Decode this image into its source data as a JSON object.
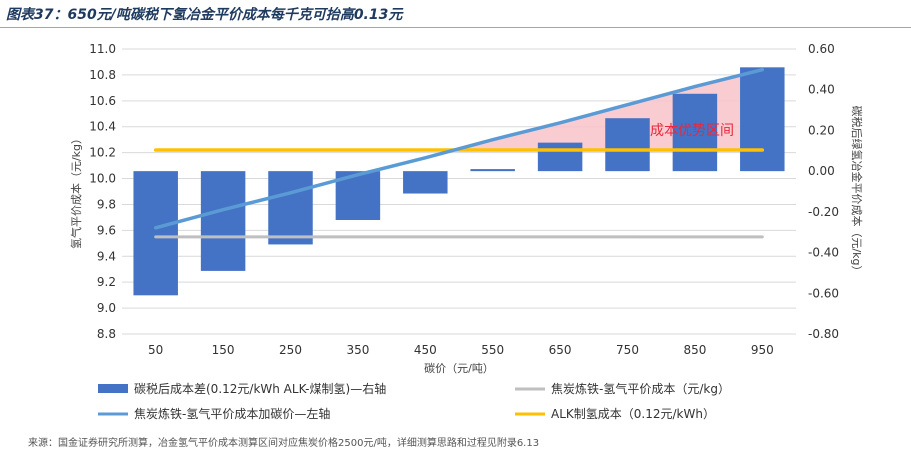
{
  "figure_title": "图表37：650元/吨碳税下氢冶金平价成本每千克可抬高0.13元",
  "source_note": "来源：国金证券研究所测算，冶金氢气平价成本测算区间对应焦炭价格2500元/吨，详细测算思路和过程见附录6.13",
  "colors": {
    "bar": "#4472c4",
    "rising_line": "#5b9bd5",
    "flat_line": "#bfbfbf",
    "alk_line": "#ffc000",
    "zone_fill": "#f8c3c9",
    "zone_text": "#e8283c"
  },
  "chart_data": {
    "type": "bar",
    "categories": [
      "50",
      "150",
      "250",
      "350",
      "450",
      "550",
      "650",
      "750",
      "850",
      "950"
    ],
    "xlabel": "碳价（元/吨）",
    "ylabel_left": "氢气平价成本（元/kg）",
    "ylabel_right": "碳税后绿氢冶金平价成本（元/kg）",
    "ylim_left": [
      8.8,
      11.0
    ],
    "yticks_left": [
      "8.8",
      "9.0",
      "9.2",
      "9.4",
      "9.6",
      "9.8",
      "10.0",
      "10.2",
      "10.4",
      "10.6",
      "10.8",
      "11.0"
    ],
    "ylim_right": [
      -0.8,
      0.6
    ],
    "yticks_right": [
      "-0.80",
      "-0.60",
      "-0.40",
      "-0.20",
      "0.00",
      "0.20",
      "0.40",
      "0.60"
    ],
    "grid": true,
    "legend_position": "bottom",
    "series": [
      {
        "name": "碳税后成本差(0.12元/kWh ALK-煤制氢)—右轴",
        "kind": "bar",
        "axis": "right",
        "values": [
          -0.61,
          -0.49,
          -0.36,
          -0.24,
          -0.11,
          0.01,
          0.14,
          0.26,
          0.38,
          0.51
        ]
      },
      {
        "name": "焦炭炼铁-氢气平价成本（元/kg）",
        "kind": "line",
        "axis": "left",
        "values": [
          9.55,
          9.55,
          9.55,
          9.55,
          9.55,
          9.55,
          9.55,
          9.55,
          9.55,
          9.55
        ]
      },
      {
        "name": "焦炭炼铁-氢气平价成本加碳价—左轴",
        "kind": "line",
        "axis": "left",
        "values": [
          9.62,
          9.76,
          9.89,
          10.03,
          10.16,
          10.3,
          10.43,
          10.57,
          10.71,
          10.84
        ]
      },
      {
        "name": "ALK制氢成本（0.12元/kWh）",
        "kind": "line",
        "axis": "left",
        "values": [
          10.22,
          10.22,
          10.22,
          10.22,
          10.22,
          10.22,
          10.22,
          10.22,
          10.22,
          10.22
        ]
      }
    ],
    "annotations": [
      {
        "text": "成本优势区间"
      }
    ]
  }
}
